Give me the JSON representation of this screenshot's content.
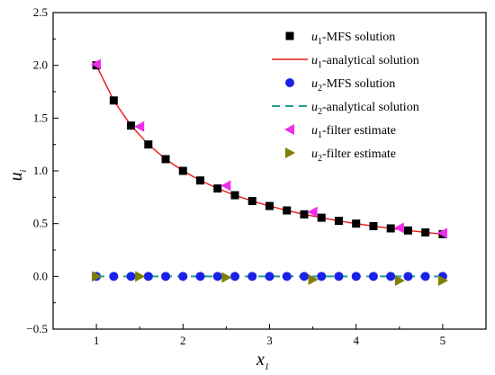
{
  "chart_data": {
    "type": "line",
    "title": "",
    "xlabel": "x",
    "xlabel_sub": "1",
    "ylabel": "u",
    "ylabel_sub": "i",
    "xlim": [
      0.5,
      5.5
    ],
    "ylim": [
      -0.5,
      2.5
    ],
    "xticks": [
      1,
      2,
      3,
      4,
      5
    ],
    "yticks": [
      -0.5,
      0.0,
      0.5,
      1.0,
      1.5,
      2.0,
      2.5
    ],
    "ytick_labels": [
      "−0.5",
      "0.0",
      "0.5",
      "1.0",
      "1.5",
      "2.0",
      "2.5"
    ],
    "xtick_labels": [
      "1",
      "2",
      "3",
      "4",
      "5"
    ],
    "grid": false,
    "legend_position": "top-right",
    "series": [
      {
        "name": "u1-MFS solution",
        "legend_base": "u",
        "legend_sub": "1",
        "legend_rest": "-MFS solution",
        "marker": "square",
        "color": "#000000",
        "x": [
          1.0,
          1.2,
          1.4,
          1.6,
          1.8,
          2.0,
          2.2,
          2.4,
          2.6,
          2.8,
          3.0,
          3.2,
          3.4,
          3.6,
          3.8,
          4.0,
          4.2,
          4.4,
          4.6,
          4.8,
          5.0
        ],
        "y": [
          2.0,
          1.667,
          1.429,
          1.25,
          1.111,
          1.0,
          0.909,
          0.833,
          0.769,
          0.714,
          0.667,
          0.625,
          0.588,
          0.556,
          0.526,
          0.5,
          0.476,
          0.455,
          0.435,
          0.417,
          0.4
        ]
      },
      {
        "name": "u1-analytical solution",
        "legend_base": "u",
        "legend_sub": "1",
        "legend_rest": "-analytical solution",
        "marker": "line",
        "color": "#e8191a",
        "x": [
          1.0,
          1.2,
          1.4,
          1.6,
          1.8,
          2.0,
          2.2,
          2.4,
          2.6,
          2.8,
          3.0,
          3.2,
          3.4,
          3.6,
          3.8,
          4.0,
          4.2,
          4.4,
          4.6,
          4.8,
          5.0
        ],
        "y": [
          2.0,
          1.667,
          1.429,
          1.25,
          1.111,
          1.0,
          0.909,
          0.833,
          0.769,
          0.714,
          0.667,
          0.625,
          0.588,
          0.556,
          0.526,
          0.5,
          0.476,
          0.455,
          0.435,
          0.417,
          0.4
        ]
      },
      {
        "name": "u2-MFS solution",
        "legend_base": "u",
        "legend_sub": "2",
        "legend_rest": "-MFS solution",
        "marker": "circle",
        "color": "#1a22e8",
        "x": [
          1.0,
          1.2,
          1.4,
          1.6,
          1.8,
          2.0,
          2.2,
          2.4,
          2.6,
          2.8,
          3.0,
          3.2,
          3.4,
          3.6,
          3.8,
          4.0,
          4.2,
          4.4,
          4.6,
          4.8,
          5.0
        ],
        "y": [
          0,
          0,
          0,
          0,
          0,
          0,
          0,
          0,
          0,
          0,
          0,
          0,
          0,
          0,
          0,
          0,
          0,
          0,
          0,
          0,
          0
        ]
      },
      {
        "name": "u2-analytical solution",
        "legend_base": "u",
        "legend_sub": "2",
        "legend_rest": "-analytical solution",
        "marker": "dash",
        "color": "#1a9e8c",
        "x": [
          1.0,
          5.0
        ],
        "y": [
          0,
          0
        ]
      },
      {
        "name": "u1-filter estimate",
        "legend_base": "u",
        "legend_sub": "1",
        "legend_rest": "-filter estimate",
        "marker": "triangle-left",
        "color": "#ee2ee8",
        "x": [
          1.0,
          1.5,
          2.5,
          3.5,
          4.5,
          5.0
        ],
        "y": [
          2.01,
          1.42,
          0.86,
          0.61,
          0.46,
          0.41
        ]
      },
      {
        "name": "u2-filter estimate",
        "legend_base": "u",
        "legend_sub": "2",
        "legend_rest": "-filter estimate",
        "marker": "triangle-right",
        "color": "#7f7f00",
        "x": [
          1.0,
          1.5,
          2.5,
          3.5,
          4.5,
          5.0
        ],
        "y": [
          0.0,
          0.0,
          -0.01,
          -0.03,
          -0.04,
          -0.04
        ]
      }
    ]
  }
}
